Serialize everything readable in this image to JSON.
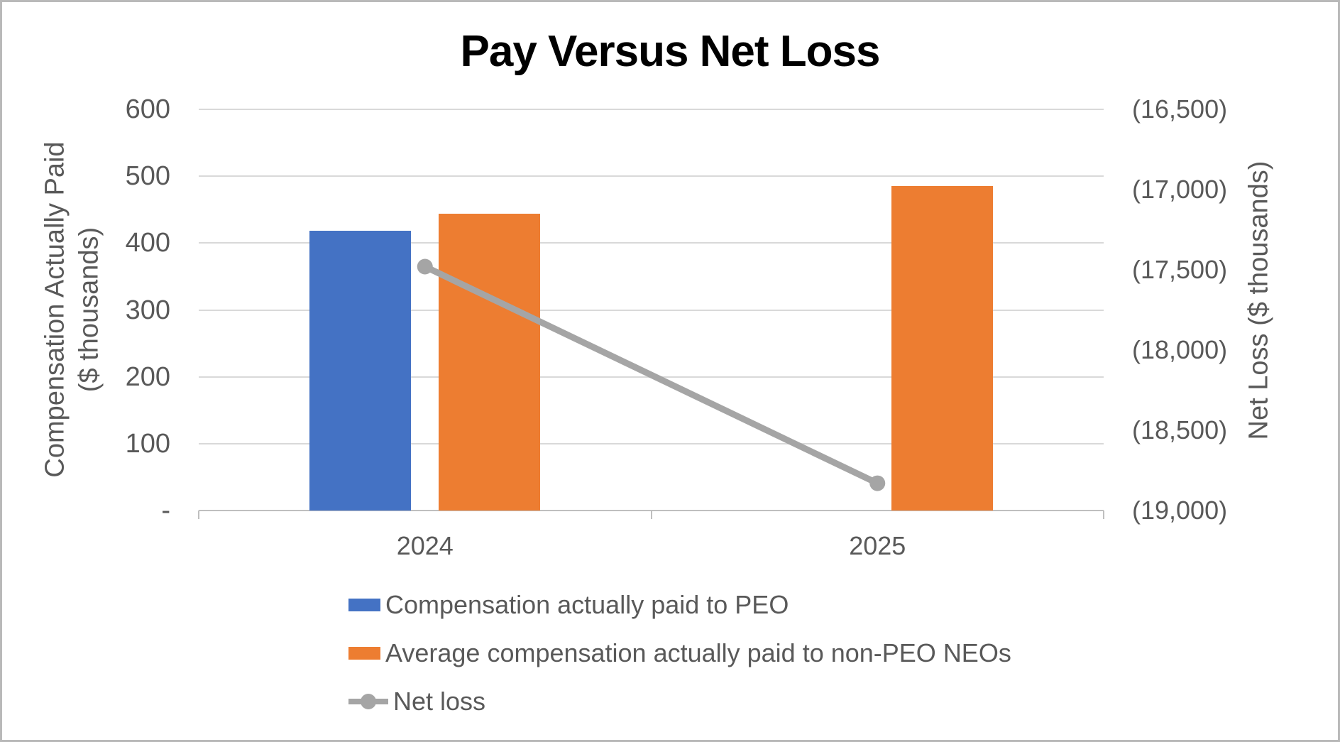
{
  "chart_data": {
    "type": "combo-bar-line",
    "title": "Pay Versus Net Loss",
    "categories": [
      "2024",
      "2025"
    ],
    "series": [
      {
        "name": "Compensation actually paid to PEO",
        "type": "bar",
        "axis": "left",
        "color": "#4472C4",
        "values": [
          418,
          null
        ]
      },
      {
        "name": "Average compensation actually paid to non-PEO NEOs",
        "type": "bar",
        "axis": "left",
        "color": "#ED7D31",
        "values": [
          444,
          485
        ]
      },
      {
        "name": "Net loss",
        "type": "line",
        "axis": "right",
        "color": "#A5A5A5",
        "values": [
          -17480,
          -18830
        ]
      }
    ],
    "left_axis": {
      "title_line1": "Compensation Actually Paid",
      "title_line2": "($ thousands)",
      "min": 0,
      "max": 600,
      "ticks": [
        "600",
        "500",
        "400",
        "300",
        "200",
        "100",
        "-"
      ]
    },
    "right_axis": {
      "title": "Net Loss ($ thousands)",
      "min": -19000,
      "max": -16500,
      "ticks": [
        "(16,500)",
        "(17,000)",
        "(17,500)",
        "(18,000)",
        "(18,500)",
        "(19,000)"
      ]
    },
    "grid": true,
    "legend_position": "bottom-left"
  },
  "colors": {
    "gridline": "#D9D9D9",
    "axis_line": "#BFBFBF",
    "tick_text": "#595959",
    "title_text": "#000000",
    "page_border": "#B9B9B9"
  }
}
